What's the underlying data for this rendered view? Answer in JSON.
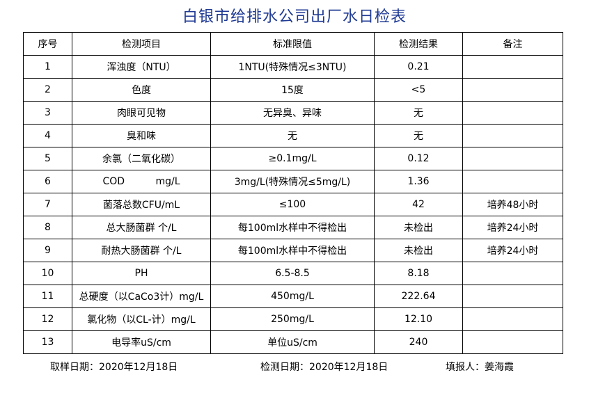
{
  "title": "白银市给排水公司出厂水日检表",
  "headers": [
    "序号",
    "检测项目",
    "标准限值",
    "检测结果",
    "备注"
  ],
  "rows": [
    [
      "1",
      "浑浊度（NTU）",
      "1NTU(特殊情况≤3NTU)",
      "0.21",
      ""
    ],
    [
      "2",
      "色度",
      "15度",
      "<5",
      ""
    ],
    [
      "3",
      "肉眼可见物",
      "无异臭、异味",
      "无",
      ""
    ],
    [
      "4",
      "臭和味",
      "无",
      "无",
      ""
    ],
    [
      "5",
      "余氯（二氧化碳）",
      "≥0.1mg/L",
      "0.12",
      ""
    ],
    [
      "6",
      "COD          mg/L",
      "3mg/L(特殊情况≤5mg/L)",
      "1.36",
      ""
    ],
    [
      "7",
      "菌落总数CFU/mL",
      "≤100",
      "42",
      "培养48小时"
    ],
    [
      "8",
      "总大肠菌群 个/L",
      "每100ml水样中不得检出",
      "未检出",
      "培养24小时"
    ],
    [
      "9",
      "耐热大肠菌群 个/L",
      "每100ml水样中不得检出",
      "未检出",
      "培养24小时"
    ],
    [
      "10",
      "PH",
      "6.5-8.5",
      "8.18",
      ""
    ],
    [
      "11",
      "总硬度（以CaCo3计）mg/L",
      "450mg/L",
      "222.64",
      ""
    ],
    [
      "12",
      "氯化物（以CL-计）mg/L",
      "250mg/L",
      "12.10",
      ""
    ],
    [
      "13",
      "电导率uS/cm",
      "单位uS/cm",
      "240",
      ""
    ]
  ],
  "footer": {
    "sample_date": "取样日期：2020年12月18日",
    "test_date": "检测日期：2020年12月18日",
    "reporter": "填报人：姜海霞"
  }
}
